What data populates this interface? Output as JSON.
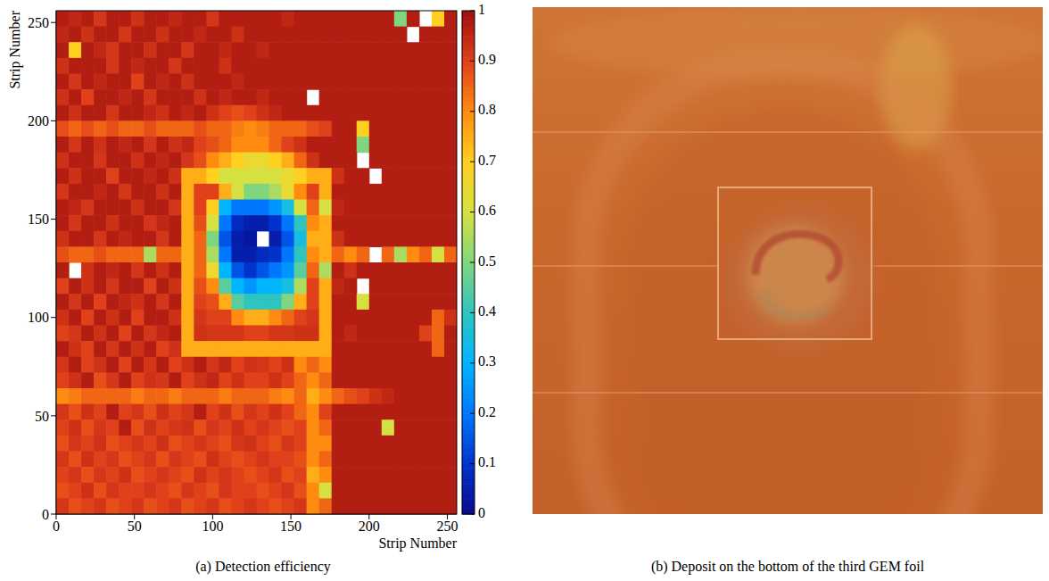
{
  "chart_data": {
    "type": "heatmap",
    "caption": "(a) Detection efficiency",
    "x_label": "Strip Number",
    "y_label": "Strip Number",
    "xlim": [
      0,
      256
    ],
    "ylim": [
      0,
      256
    ],
    "xticks": [
      0,
      50,
      100,
      150,
      200,
      250
    ],
    "yticks": [
      0,
      50,
      100,
      150,
      200,
      250
    ],
    "colorbar": {
      "range": [
        0,
        1
      ],
      "ticks": [
        0,
        0.1,
        0.2,
        0.3,
        0.4,
        0.5,
        0.6,
        0.7,
        0.8,
        0.9,
        1
      ]
    },
    "cells": {
      "bin_size": 8,
      "values": [
        [
          0.97,
          0.95,
          0.97,
          0.92,
          0.97,
          0.97,
          0.93,
          0.97,
          0.97,
          0.95,
          0.97,
          0.97,
          0.92,
          0.97,
          0.97,
          0.97,
          0.97,
          0.97,
          0.95,
          0.97,
          0.97,
          0.97,
          0.97,
          0.97,
          0.97,
          0.97,
          0.97,
          0.5,
          0.97,
          null,
          0.7,
          0.97
        ],
        [
          0.95,
          0.97,
          0.93,
          0.97,
          0.97,
          0.92,
          0.97,
          0.97,
          0.93,
          0.97,
          0.97,
          0.95,
          0.97,
          0.97,
          0.93,
          0.97,
          0.97,
          0.97,
          0.97,
          0.97,
          0.97,
          0.97,
          0.97,
          0.97,
          0.97,
          0.97,
          0.97,
          0.97,
          null,
          0.97,
          0.97,
          0.97
        ],
        [
          0.97,
          0.7,
          0.97,
          0.95,
          0.92,
          0.97,
          0.97,
          0.93,
          0.97,
          0.97,
          0.92,
          0.97,
          0.97,
          0.95,
          0.97,
          0.97,
          0.95,
          0.97,
          0.97,
          0.97,
          0.97,
          0.97,
          0.97,
          0.97,
          0.97,
          0.97,
          0.97,
          0.97,
          0.97,
          0.97,
          0.97,
          0.97
        ],
        [
          0.93,
          0.97,
          0.97,
          0.97,
          0.92,
          0.97,
          0.95,
          0.97,
          0.97,
          0.92,
          0.97,
          0.97,
          0.97,
          0.93,
          0.97,
          0.97,
          0.97,
          0.97,
          0.97,
          0.97,
          0.97,
          0.97,
          0.97,
          0.97,
          0.97,
          0.97,
          0.97,
          0.97,
          0.97,
          0.97,
          0.97,
          0.97
        ],
        [
          0.97,
          0.92,
          0.97,
          0.95,
          0.97,
          0.97,
          0.9,
          0.97,
          0.95,
          0.97,
          0.93,
          0.97,
          0.97,
          0.97,
          0.95,
          0.97,
          0.97,
          0.97,
          0.97,
          0.97,
          0.97,
          0.97,
          0.97,
          0.97,
          0.97,
          0.97,
          0.97,
          0.97,
          0.97,
          0.97,
          0.97,
          0.97
        ],
        [
          0.93,
          0.97,
          0.9,
          0.97,
          0.97,
          0.95,
          0.97,
          0.92,
          0.97,
          0.97,
          0.97,
          0.93,
          0.97,
          0.95,
          0.97,
          0.97,
          0.95,
          0.97,
          0.97,
          0.97,
          null,
          0.97,
          0.97,
          0.97,
          0.97,
          0.97,
          0.97,
          0.97,
          0.97,
          0.97,
          0.97,
          0.97
        ],
        [
          0.97,
          0.93,
          0.97,
          0.97,
          0.92,
          0.97,
          0.97,
          0.95,
          0.93,
          0.97,
          0.95,
          0.97,
          0.93,
          0.9,
          0.88,
          0.9,
          0.93,
          0.95,
          0.97,
          0.97,
          0.97,
          0.97,
          0.97,
          0.97,
          0.97,
          0.97,
          0.97,
          0.97,
          0.97,
          0.97,
          0.97,
          0.97
        ],
        [
          0.88,
          0.85,
          0.88,
          0.85,
          0.88,
          0.85,
          0.85,
          0.88,
          0.85,
          0.85,
          0.85,
          0.88,
          0.85,
          0.85,
          0.82,
          0.8,
          0.82,
          0.85,
          0.85,
          0.85,
          0.88,
          0.9,
          0.97,
          0.97,
          0.7,
          0.97,
          0.97,
          0.97,
          0.97,
          0.97,
          0.97,
          0.97
        ],
        [
          0.97,
          0.92,
          0.97,
          0.93,
          0.97,
          0.95,
          0.97,
          0.92,
          0.97,
          0.93,
          0.95,
          0.9,
          0.88,
          0.85,
          0.8,
          0.8,
          0.8,
          0.85,
          0.9,
          0.93,
          0.97,
          0.97,
          0.97,
          0.97,
          0.5,
          0.97,
          0.97,
          0.97,
          0.97,
          0.97,
          0.97,
          0.97
        ],
        [
          0.93,
          0.97,
          0.97,
          0.92,
          0.97,
          0.97,
          0.93,
          0.97,
          0.95,
          0.97,
          0.92,
          0.88,
          0.8,
          0.75,
          0.7,
          0.65,
          0.65,
          0.7,
          0.75,
          0.85,
          0.93,
          0.97,
          0.97,
          0.97,
          null,
          0.97,
          0.97,
          0.97,
          0.97,
          0.97,
          0.97,
          0.97
        ],
        [
          0.97,
          0.93,
          0.97,
          0.97,
          0.9,
          0.97,
          0.97,
          0.95,
          0.97,
          0.93,
          0.75,
          0.75,
          0.7,
          0.6,
          0.6,
          0.6,
          0.6,
          0.6,
          0.65,
          0.7,
          0.75,
          0.75,
          0.93,
          0.97,
          0.97,
          null,
          0.97,
          0.97,
          0.97,
          0.97,
          0.97,
          0.97
        ],
        [
          0.92,
          0.97,
          0.97,
          0.95,
          0.97,
          0.92,
          0.97,
          0.97,
          0.93,
          0.97,
          0.75,
          0.9,
          0.9,
          0.75,
          0.6,
          0.5,
          0.5,
          0.55,
          0.65,
          0.8,
          0.9,
          0.75,
          0.97,
          0.97,
          0.97,
          0.97,
          0.97,
          0.97,
          0.97,
          0.97,
          0.97,
          0.97
        ],
        [
          0.97,
          0.95,
          0.92,
          0.97,
          0.97,
          0.97,
          0.93,
          0.97,
          0.97,
          0.92,
          0.75,
          0.9,
          0.7,
          0.3,
          0.2,
          0.2,
          0.2,
          0.25,
          0.35,
          0.6,
          0.85,
          0.6,
          0.95,
          0.97,
          0.97,
          0.97,
          0.97,
          0.97,
          0.97,
          0.97,
          0.97,
          0.97
        ],
        [
          0.97,
          0.92,
          0.97,
          0.97,
          0.93,
          0.97,
          0.97,
          0.92,
          0.95,
          0.97,
          0.75,
          0.88,
          0.6,
          0.2,
          0.08,
          0.05,
          0.05,
          0.1,
          0.2,
          0.4,
          0.8,
          0.75,
          0.97,
          0.97,
          0.97,
          0.97,
          0.97,
          0.97,
          0.97,
          0.97,
          0.97,
          0.97
        ],
        [
          0.93,
          0.97,
          0.97,
          0.92,
          0.97,
          0.95,
          0.97,
          0.97,
          0.92,
          0.97,
          0.75,
          0.85,
          0.5,
          0.15,
          0.05,
          0.03,
          null,
          0.05,
          0.15,
          0.35,
          0.75,
          0.75,
          0.93,
          0.97,
          0.97,
          0.97,
          0.97,
          0.97,
          0.97,
          0.97,
          0.97,
          0.97
        ],
        [
          0.88,
          0.85,
          0.85,
          0.88,
          0.85,
          0.85,
          0.85,
          0.55,
          0.85,
          0.85,
          0.75,
          0.85,
          0.55,
          0.2,
          0.05,
          0.05,
          0.08,
          0.1,
          0.2,
          0.4,
          0.8,
          0.75,
          0.85,
          0.8,
          0.85,
          null,
          0.85,
          0.55,
          0.8,
          0.85,
          0.6,
          0.85
        ],
        [
          0.97,
          null,
          0.93,
          0.97,
          0.95,
          0.97,
          0.92,
          0.97,
          0.93,
          0.97,
          0.75,
          0.85,
          0.65,
          0.3,
          0.15,
          0.1,
          0.15,
          0.2,
          0.25,
          0.45,
          0.85,
          0.55,
          0.97,
          0.93,
          0.97,
          0.97,
          0.97,
          0.97,
          0.97,
          0.97,
          0.97,
          0.97
        ],
        [
          0.9,
          0.97,
          0.93,
          0.97,
          0.92,
          0.97,
          0.97,
          0.9,
          0.97,
          0.93,
          0.75,
          0.88,
          0.8,
          0.45,
          0.3,
          0.25,
          0.3,
          0.3,
          0.35,
          0.55,
          0.9,
          0.75,
          0.95,
          0.97,
          null,
          0.97,
          0.97,
          0.97,
          0.97,
          0.97,
          0.97,
          0.97
        ],
        [
          0.97,
          0.92,
          0.97,
          0.9,
          0.97,
          0.95,
          0.93,
          0.97,
          0.92,
          0.97,
          0.75,
          0.9,
          0.88,
          0.75,
          0.45,
          0.4,
          0.4,
          0.4,
          0.5,
          0.75,
          0.9,
          0.75,
          0.97,
          0.97,
          0.6,
          0.97,
          0.97,
          0.97,
          0.97,
          0.97,
          0.97,
          0.97
        ],
        [
          0.93,
          0.97,
          0.9,
          0.97,
          0.93,
          0.97,
          0.9,
          0.97,
          0.97,
          0.93,
          0.75,
          0.92,
          0.9,
          0.9,
          0.8,
          0.75,
          0.75,
          0.8,
          0.85,
          0.9,
          0.92,
          0.75,
          0.97,
          0.97,
          0.97,
          0.97,
          0.97,
          0.97,
          0.97,
          0.97,
          0.85,
          0.93
        ],
        [
          0.9,
          0.92,
          0.97,
          0.93,
          0.97,
          0.9,
          0.97,
          0.92,
          0.95,
          0.97,
          0.75,
          0.93,
          0.92,
          0.92,
          0.92,
          0.9,
          0.9,
          0.92,
          0.92,
          0.93,
          0.93,
          0.75,
          0.97,
          0.95,
          0.97,
          0.97,
          0.97,
          0.97,
          0.97,
          0.9,
          0.85,
          0.97
        ],
        [
          0.97,
          0.93,
          0.9,
          0.97,
          0.92,
          0.97,
          0.93,
          0.97,
          0.9,
          0.93,
          0.75,
          0.75,
          0.75,
          0.75,
          0.75,
          0.75,
          0.75,
          0.75,
          0.75,
          0.75,
          0.75,
          0.75,
          0.97,
          0.97,
          0.97,
          0.97,
          0.97,
          0.97,
          0.97,
          0.97,
          0.85,
          0.97
        ],
        [
          0.92,
          0.97,
          0.9,
          0.93,
          0.97,
          0.9,
          0.97,
          0.92,
          0.97,
          0.9,
          0.93,
          0.97,
          0.92,
          0.95,
          0.9,
          0.93,
          0.92,
          0.9,
          0.93,
          0.8,
          0.85,
          0.8,
          0.97,
          0.97,
          0.97,
          0.97,
          0.97,
          0.97,
          0.97,
          0.97,
          0.97,
          0.97
        ],
        [
          0.9,
          0.93,
          0.97,
          0.88,
          0.92,
          0.97,
          0.9,
          0.93,
          0.92,
          0.97,
          0.9,
          0.93,
          0.95,
          0.9,
          0.93,
          0.9,
          0.9,
          0.93,
          0.9,
          0.85,
          0.8,
          0.85,
          0.97,
          0.97,
          0.97,
          0.97,
          0.97,
          0.97,
          0.97,
          0.97,
          0.97,
          0.97
        ],
        [
          0.8,
          0.82,
          0.85,
          0.85,
          0.85,
          0.85,
          0.82,
          0.85,
          0.85,
          0.82,
          0.85,
          0.85,
          0.85,
          0.82,
          0.85,
          0.85,
          0.85,
          0.82,
          0.8,
          0.85,
          0.75,
          0.8,
          0.85,
          0.88,
          0.9,
          0.93,
          0.95,
          0.97,
          0.97,
          0.97,
          0.97,
          0.97
        ],
        [
          0.92,
          0.88,
          0.93,
          0.9,
          0.97,
          0.9,
          0.92,
          0.88,
          0.93,
          0.9,
          0.92,
          0.97,
          0.9,
          0.93,
          0.88,
          0.92,
          0.9,
          0.93,
          0.9,
          0.85,
          0.8,
          0.9,
          0.97,
          0.97,
          0.97,
          0.97,
          0.97,
          0.97,
          0.97,
          0.97,
          0.97,
          0.97
        ],
        [
          0.9,
          0.93,
          0.88,
          0.92,
          0.9,
          0.97,
          0.88,
          0.93,
          0.9,
          0.92,
          0.93,
          0.88,
          0.92,
          0.9,
          0.93,
          0.9,
          0.92,
          0.9,
          0.88,
          0.9,
          0.8,
          0.85,
          0.97,
          0.97,
          0.97,
          0.97,
          0.6,
          0.97,
          0.97,
          0.97,
          0.97,
          0.97
        ],
        [
          0.88,
          0.92,
          0.9,
          0.93,
          0.88,
          0.9,
          0.92,
          0.9,
          0.93,
          0.88,
          0.9,
          0.92,
          0.9,
          0.88,
          0.92,
          0.93,
          0.9,
          0.88,
          0.92,
          0.9,
          0.8,
          0.8,
          0.97,
          0.97,
          0.97,
          0.97,
          0.97,
          0.97,
          0.97,
          0.97,
          0.97,
          0.97
        ],
        [
          0.92,
          0.88,
          0.93,
          0.9,
          0.92,
          0.88,
          0.9,
          0.92,
          0.88,
          0.92,
          0.9,
          0.88,
          0.93,
          0.9,
          0.88,
          0.9,
          0.92,
          0.9,
          0.9,
          0.88,
          0.8,
          0.85,
          0.97,
          0.97,
          0.97,
          0.97,
          0.97,
          0.97,
          0.97,
          0.97,
          0.97,
          0.97
        ],
        [
          0.9,
          0.92,
          0.88,
          0.92,
          0.9,
          0.93,
          0.88,
          0.9,
          0.92,
          0.9,
          0.88,
          0.93,
          0.9,
          0.92,
          0.9,
          0.88,
          0.9,
          0.92,
          0.88,
          0.9,
          0.75,
          0.8,
          0.97,
          0.97,
          0.97,
          0.97,
          0.97,
          0.97,
          0.97,
          0.97,
          0.97,
          0.97
        ],
        [
          0.88,
          0.9,
          0.93,
          0.88,
          0.92,
          0.9,
          0.9,
          0.92,
          0.9,
          0.88,
          0.92,
          0.9,
          0.88,
          0.92,
          0.9,
          0.9,
          0.88,
          0.9,
          0.92,
          0.88,
          0.8,
          0.6,
          0.97,
          0.97,
          0.97,
          0.97,
          0.97,
          0.97,
          0.97,
          0.97,
          0.97,
          0.97
        ],
        [
          0.92,
          0.88,
          0.9,
          0.92,
          0.88,
          0.9,
          0.92,
          0.88,
          0.9,
          0.92,
          0.88,
          0.9,
          0.92,
          0.88,
          0.9,
          0.92,
          0.9,
          0.88,
          0.9,
          0.92,
          0.8,
          0.85,
          0.97,
          0.97,
          0.97,
          0.97,
          0.97,
          0.97,
          0.97,
          0.97,
          0.97,
          0.97
        ]
      ]
    }
  },
  "photo": {
    "caption": "(b) Deposit on the bottom of the third GEM foil"
  }
}
